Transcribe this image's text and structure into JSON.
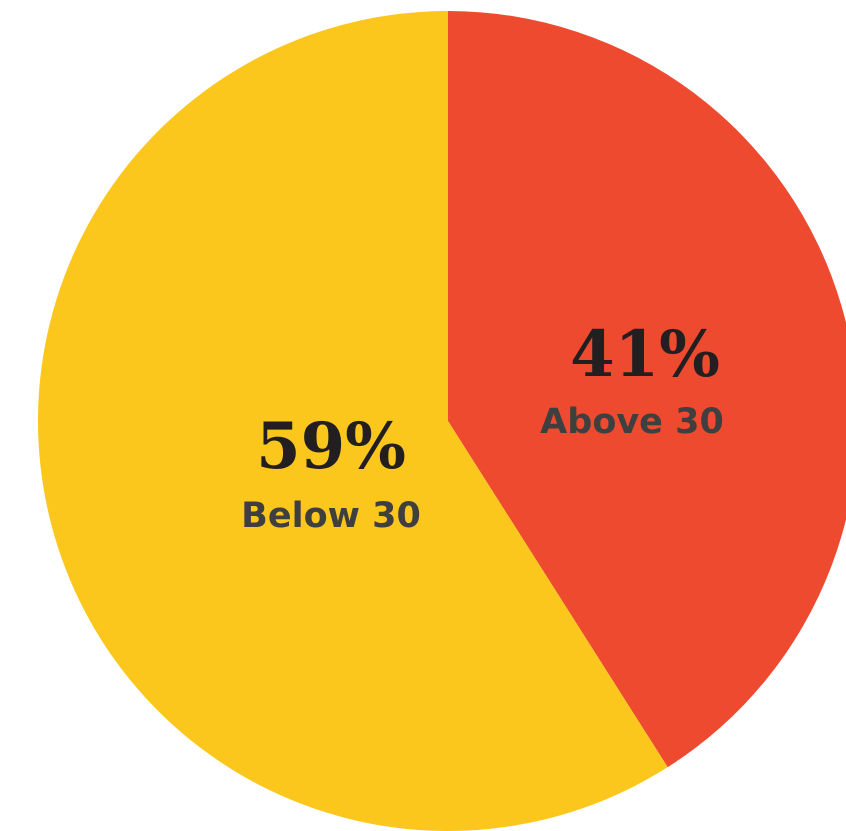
{
  "chart_data": {
    "type": "pie",
    "slices": [
      {
        "label": "Above 30",
        "value": 41,
        "value_label": "41%",
        "color": "#ee4a2f"
      },
      {
        "label": "Below 30",
        "value": 59,
        "value_label": "59%",
        "color": "#fcc71d"
      }
    ],
    "start": "12 o'clock",
    "direction": "clockwise",
    "legend": "none"
  }
}
